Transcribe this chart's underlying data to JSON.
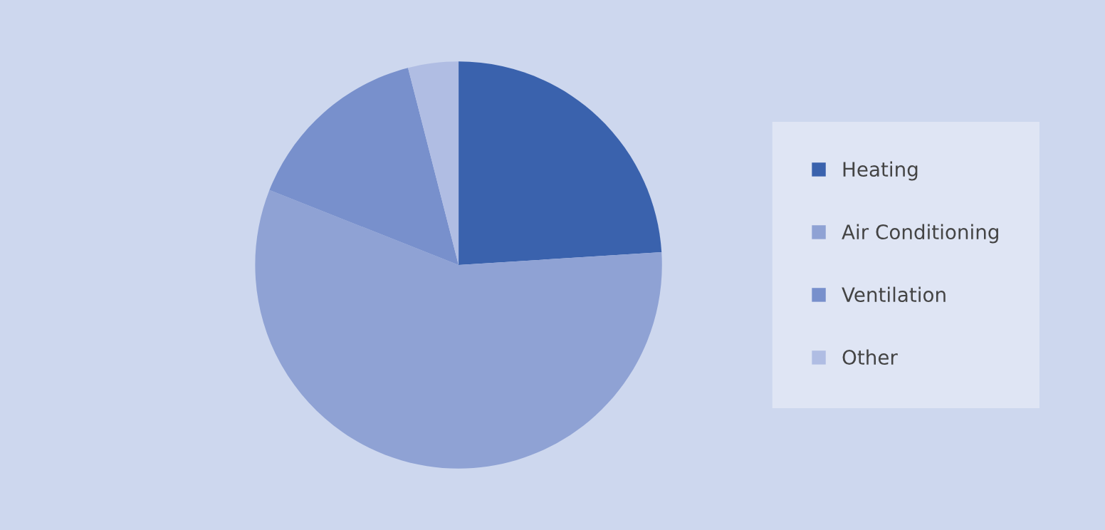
{
  "chart_data": {
    "type": "pie",
    "categories": [
      "Heating",
      "Air Conditioning",
      "Ventilation",
      "Other"
    ],
    "values": [
      24,
      57,
      15,
      4
    ],
    "colors": [
      "#3a62ad",
      "#8fa2d4",
      "#7890cc",
      "#b0bde3"
    ],
    "legend": "right"
  }
}
